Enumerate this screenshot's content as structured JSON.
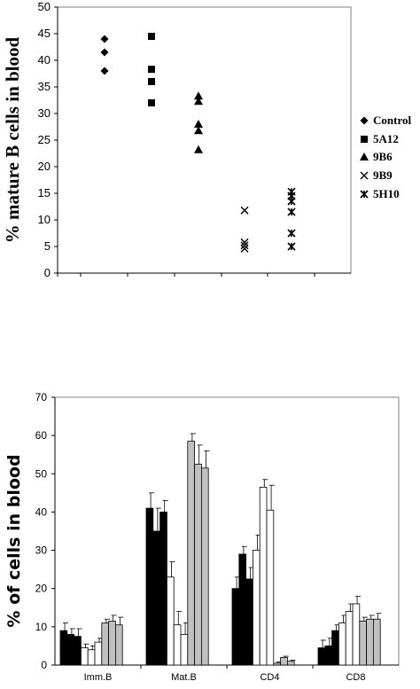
{
  "chart_data": [
    {
      "type": "scatter",
      "ylabel": "% mature B cells in blood",
      "ylim": [
        0,
        50
      ],
      "yticks": [
        0,
        5,
        10,
        15,
        20,
        25,
        30,
        35,
        40,
        45,
        50
      ],
      "grid": false,
      "legend_position": "right",
      "series": [
        {
          "name": "Control",
          "marker": "diamond",
          "x": [
            1,
            1,
            1
          ],
          "values": [
            44.0,
            41.5,
            38.0
          ]
        },
        {
          "name": "5A12",
          "marker": "square",
          "x": [
            2,
            2,
            2,
            2
          ],
          "values": [
            44.5,
            38.3,
            36.0,
            32.0
          ]
        },
        {
          "name": "9B6",
          "marker": "triangle",
          "x": [
            3,
            3,
            3,
            3,
            3
          ],
          "values": [
            33.3,
            32.3,
            28.0,
            26.8,
            23.2
          ]
        },
        {
          "name": "9B9",
          "marker": "x",
          "x": [
            4,
            4,
            4,
            4
          ],
          "values": [
            11.8,
            5.8,
            5.2,
            4.6
          ]
        },
        {
          "name": "5H10",
          "marker": "star",
          "x": [
            5,
            5,
            5,
            5,
            5,
            5
          ],
          "values": [
            15.3,
            13.5,
            11.5,
            7.5,
            5.0,
            14.5
          ]
        }
      ]
    },
    {
      "type": "bar",
      "ylabel": "% of cells in blood",
      "ylim": [
        0,
        70
      ],
      "yticks": [
        0,
        10,
        20,
        30,
        40,
        50,
        60,
        70
      ],
      "categories": [
        "Imm.B",
        "Mat.B",
        "CD4",
        "CD8"
      ],
      "bar_fills": [
        "#000000",
        "#000000",
        "#000000",
        "#ffffff",
        "#ffffff",
        "#ffffff",
        "#c0c0c0",
        "#c0c0c0",
        "#c0c0c0"
      ],
      "series": [
        {
          "values": [
            9.0,
            41.0,
            20.0,
            4.5
          ],
          "errors": [
            2.0,
            4.0,
            3.0,
            2.0
          ]
        },
        {
          "values": [
            8.0,
            35.0,
            29.0,
            5.0
          ],
          "errors": [
            1.5,
            6.0,
            2.0,
            2.0
          ]
        },
        {
          "values": [
            7.5,
            40.0,
            22.5,
            9.0
          ],
          "errors": [
            2.0,
            3.0,
            3.0,
            1.5
          ]
        },
        {
          "values": [
            4.5,
            23.0,
            30.0,
            11.0
          ],
          "errors": [
            1.0,
            4.0,
            4.0,
            2.0
          ]
        },
        {
          "values": [
            4.0,
            10.5,
            46.5,
            14.0
          ],
          "errors": [
            1.0,
            3.5,
            2.0,
            2.0
          ]
        },
        {
          "values": [
            6.0,
            8.0,
            40.5,
            16.0
          ],
          "errors": [
            1.0,
            3.0,
            6.5,
            2.0
          ]
        },
        {
          "values": [
            11.0,
            58.5,
            0.5,
            11.5
          ],
          "errors": [
            1.0,
            2.0,
            0.3,
            1.0
          ]
        },
        {
          "values": [
            11.5,
            52.5,
            2.0,
            12.0
          ],
          "errors": [
            1.5,
            5.0,
            0.3,
            1.0
          ]
        },
        {
          "values": [
            10.5,
            51.5,
            1.0,
            12.0
          ],
          "errors": [
            2.0,
            4.5,
            0.3,
            1.5
          ]
        }
      ]
    }
  ]
}
